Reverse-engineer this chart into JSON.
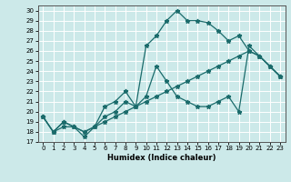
{
  "title": "",
  "xlabel": "Humidex (Indice chaleur)",
  "bg_color": "#cce9e9",
  "grid_color": "#ffffff",
  "line_color": "#1a6b6b",
  "xlim": [
    -0.5,
    23.5
  ],
  "ylim": [
    17,
    30.5
  ],
  "yticks": [
    17,
    18,
    19,
    20,
    21,
    22,
    23,
    24,
    25,
    26,
    27,
    28,
    29,
    30
  ],
  "xticks": [
    0,
    1,
    2,
    3,
    4,
    5,
    6,
    7,
    8,
    9,
    10,
    11,
    12,
    13,
    14,
    15,
    16,
    17,
    18,
    19,
    20,
    21,
    22,
    23
  ],
  "line1_x": [
    0,
    1,
    2,
    3,
    4,
    5,
    6,
    7,
    8,
    9,
    10,
    11,
    12,
    13,
    14,
    15,
    16,
    17,
    18,
    19,
    20,
    21,
    22,
    23
  ],
  "line1_y": [
    19.5,
    18.0,
    19.0,
    18.5,
    18.0,
    18.5,
    20.5,
    21.0,
    22.0,
    20.5,
    26.5,
    27.5,
    29.0,
    30.0,
    29.0,
    29.0,
    28.8,
    28.0,
    27.0,
    27.5,
    26.0,
    25.5,
    24.5,
    23.5
  ],
  "line2_x": [
    0,
    1,
    2,
    3,
    4,
    5,
    6,
    7,
    8,
    9,
    10,
    11,
    12,
    13,
    14,
    15,
    16,
    17,
    18,
    19,
    20,
    21,
    22,
    23
  ],
  "line2_y": [
    19.5,
    18.0,
    19.0,
    18.5,
    17.5,
    18.5,
    19.0,
    19.5,
    20.0,
    20.5,
    21.0,
    21.5,
    22.0,
    22.5,
    23.0,
    23.5,
    24.0,
    24.5,
    25.0,
    25.5,
    26.0,
    25.5,
    24.5,
    23.5
  ],
  "line3_x": [
    0,
    1,
    2,
    3,
    4,
    5,
    6,
    7,
    8,
    9,
    10,
    11,
    12,
    13,
    14,
    15,
    16,
    17,
    18,
    19,
    20,
    21,
    22,
    23
  ],
  "line3_y": [
    19.5,
    18.0,
    18.5,
    18.5,
    18.0,
    18.5,
    19.5,
    20.0,
    21.0,
    20.5,
    21.5,
    24.5,
    23.0,
    21.5,
    21.0,
    20.5,
    20.5,
    21.0,
    21.5,
    20.0,
    26.5,
    25.5,
    24.5,
    23.5
  ]
}
